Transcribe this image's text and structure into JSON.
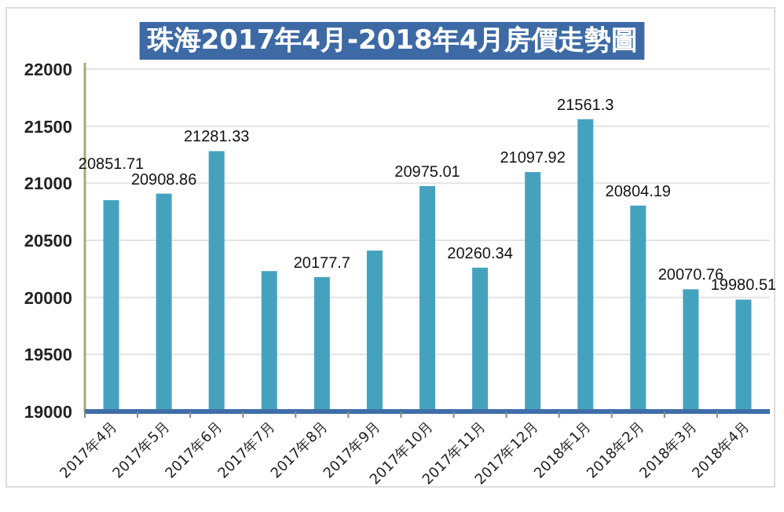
{
  "chart_data": {
    "type": "bar",
    "title": "珠海2017年4月-2018年4月房價走勢圖",
    "categories": [
      "2017年4月",
      "2017年5月",
      "2017年6月",
      "2017年7月",
      "2017年8月",
      "2017年9月",
      "2017年10月",
      "2017年11月",
      "2017年12月",
      "2018年1月",
      "2018年2月",
      "2018年3月",
      "2018年4月"
    ],
    "values": [
      20851.71,
      20908.86,
      21281.33,
      20230,
      20177.7,
      20410,
      20975.01,
      20260.34,
      21097.92,
      21561.3,
      20804.19,
      20070.76,
      19980.51
    ],
    "value_labels": [
      "20851.71",
      "20908.86",
      "21281.33",
      null,
      "20177.7",
      null,
      "20975.01",
      "20260.34",
      "21097.92",
      "21561.3",
      "20804.19",
      "20070.76",
      "19980.51"
    ],
    "color": "#45a2bf",
    "ylim": [
      19000,
      22000
    ],
    "yticks": [
      19000,
      19500,
      20000,
      20500,
      21000,
      21500,
      22000
    ],
    "grid": "y"
  }
}
